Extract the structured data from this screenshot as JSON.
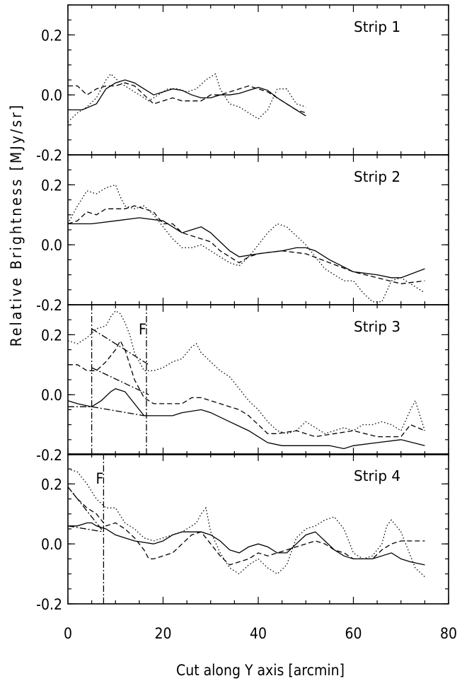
{
  "chart_data": {
    "type": "line",
    "xlabel": "Cut along Y axis [arcmin]",
    "ylabel": "Relative Brightness [MJy/sr]",
    "xlim": [
      0,
      80
    ],
    "x_ticks": [
      "0",
      "20",
      "40",
      "60",
      "80"
    ],
    "panels": [
      {
        "title": "Strip 1",
        "ylim": [
          -0.2,
          0.3
        ],
        "y_ticks": [
          "0.2",
          "0.0",
          "-0.2"
        ],
        "series": [
          {
            "style": "solid",
            "x": [
              0,
              3,
              6,
              8,
              10,
              12,
              14,
              16,
              18,
              20,
              22,
              24,
              26,
              28,
              30,
              32,
              34,
              36,
              38,
              40,
              42,
              44,
              46,
              48,
              50
            ],
            "values": [
              -0.05,
              -0.05,
              -0.03,
              0.02,
              0.04,
              0.05,
              0.04,
              0.02,
              0.0,
              0.01,
              0.02,
              0.015,
              0.0,
              -0.01,
              -0.01,
              0.0,
              0.0,
              0.005,
              0.015,
              0.025,
              0.015,
              -0.01,
              -0.03,
              -0.05,
              -0.07
            ]
          },
          {
            "style": "dashed",
            "x": [
              0,
              2,
              4,
              6,
              8,
              10,
              12,
              14,
              16,
              18,
              20,
              22,
              24,
              26,
              28,
              30,
              32,
              34,
              36,
              38,
              40,
              42,
              44,
              46,
              48,
              50
            ],
            "values": [
              0.03,
              0.03,
              0.0,
              0.02,
              0.03,
              0.03,
              0.04,
              0.03,
              0.0,
              -0.03,
              -0.02,
              -0.01,
              -0.02,
              -0.02,
              -0.02,
              0.0,
              0.0,
              0.01,
              0.02,
              0.03,
              0.02,
              0.01,
              -0.01,
              -0.03,
              -0.05,
              -0.06
            ]
          },
          {
            "style": "dotted",
            "x": [
              0,
              2,
              4,
              6,
              8,
              9,
              11,
              13,
              15,
              17,
              19,
              21,
              23,
              25,
              27,
              29,
              31,
              32,
              34,
              36,
              38,
              40,
              42,
              44,
              46,
              48,
              50
            ],
            "values": [
              -0.09,
              -0.06,
              -0.04,
              -0.01,
              0.05,
              0.07,
              0.04,
              0.02,
              0.0,
              -0.02,
              0.0,
              0.02,
              0.02,
              0.01,
              0.02,
              0.05,
              0.07,
              0.02,
              -0.03,
              -0.04,
              -0.06,
              -0.08,
              -0.05,
              0.02,
              0.02,
              -0.03,
              -0.04
            ]
          }
        ]
      },
      {
        "title": "Strip 2",
        "ylim": [
          -0.2,
          0.3
        ],
        "y_ticks": [
          "0.2",
          "0.0",
          "-0.2"
        ],
        "series": [
          {
            "style": "solid",
            "x": [
              0,
              5,
              10,
              15,
              20,
              22,
              24,
              26,
              28,
              30,
              32,
              34,
              36,
              40,
              45,
              48,
              50,
              52,
              55,
              60,
              65,
              68,
              70,
              75
            ],
            "values": [
              0.07,
              0.07,
              0.08,
              0.09,
              0.08,
              0.06,
              0.04,
              0.05,
              0.06,
              0.04,
              0.01,
              -0.02,
              -0.04,
              -0.03,
              -0.02,
              -0.01,
              -0.01,
              -0.02,
              -0.05,
              -0.09,
              -0.1,
              -0.11,
              -0.11,
              -0.08
            ]
          },
          {
            "style": "dashed",
            "x": [
              0,
              2,
              4,
              6,
              8,
              10,
              12,
              14,
              16,
              18,
              20,
              22,
              24,
              26,
              28,
              30,
              32,
              34,
              36,
              38,
              40,
              45,
              50,
              55,
              60,
              65,
              70,
              75
            ],
            "values": [
              0.07,
              0.08,
              0.11,
              0.1,
              0.12,
              0.12,
              0.12,
              0.13,
              0.12,
              0.11,
              0.07,
              0.07,
              0.04,
              0.03,
              0.02,
              0.01,
              -0.02,
              -0.04,
              -0.06,
              -0.04,
              -0.03,
              -0.02,
              -0.03,
              -0.06,
              -0.09,
              -0.11,
              -0.13,
              -0.12
            ]
          },
          {
            "style": "dotted",
            "x": [
              0,
              2,
              4,
              6,
              8,
              10,
              11,
              12,
              14,
              16,
              18,
              20,
              22,
              24,
              26,
              28,
              30,
              32,
              34,
              36,
              38,
              40,
              42,
              44,
              46,
              48,
              50,
              52,
              54,
              56,
              58,
              60,
              62,
              64,
              66,
              68,
              70,
              72,
              75
            ],
            "values": [
              0.07,
              0.13,
              0.18,
              0.17,
              0.19,
              0.2,
              0.16,
              0.13,
              0.12,
              0.13,
              0.1,
              0.06,
              0.02,
              -0.01,
              -0.01,
              0.0,
              -0.02,
              -0.04,
              -0.06,
              -0.07,
              -0.04,
              0.0,
              0.04,
              0.07,
              0.06,
              0.03,
              0.0,
              -0.04,
              -0.08,
              -0.1,
              -0.12,
              -0.12,
              -0.16,
              -0.19,
              -0.19,
              -0.12,
              -0.11,
              -0.13,
              -0.16
            ]
          }
        ]
      },
      {
        "title": "Strip 3",
        "ylim": [
          -0.2,
          0.3
        ],
        "y_ticks": [
          "0.2",
          "0.0",
          "-0.2"
        ],
        "annotation": "F",
        "series": [
          {
            "style": "solid",
            "x": [
              0,
              2,
              5,
              7,
              9,
              10,
              12,
              14,
              16,
              18,
              20,
              22,
              24,
              28,
              30,
              34,
              38,
              42,
              45,
              50,
              55,
              58,
              60,
              65,
              70,
              75
            ],
            "values": [
              -0.02,
              -0.03,
              -0.04,
              -0.02,
              0.01,
              0.02,
              0.01,
              -0.03,
              -0.07,
              -0.07,
              -0.07,
              -0.07,
              -0.06,
              -0.05,
              -0.06,
              -0.09,
              -0.12,
              -0.16,
              -0.17,
              -0.17,
              -0.17,
              -0.18,
              -0.17,
              -0.16,
              -0.15,
              -0.17
            ]
          },
          {
            "style": "dashed",
            "x": [
              0,
              2,
              4,
              6,
              8,
              10,
              11,
              12,
              14,
              16,
              18,
              20,
              22,
              24,
              26,
              28,
              30,
              32,
              34,
              36,
              38,
              40,
              42,
              44,
              48,
              52,
              56,
              60,
              65,
              70,
              72,
              75
            ],
            "values": [
              0.1,
              0.1,
              0.08,
              0.08,
              0.11,
              0.15,
              0.18,
              0.15,
              0.05,
              -0.01,
              -0.03,
              -0.03,
              -0.03,
              -0.03,
              -0.01,
              -0.01,
              -0.02,
              -0.03,
              -0.04,
              -0.05,
              -0.07,
              -0.1,
              -0.13,
              -0.13,
              -0.12,
              -0.14,
              -0.13,
              -0.12,
              -0.14,
              -0.14,
              -0.1,
              -0.12
            ]
          },
          {
            "style": "dotted",
            "x": [
              0,
              2,
              4,
              6,
              8,
              9,
              10,
              11,
              12,
              13,
              14,
              16,
              18,
              20,
              22,
              24,
              26,
              27,
              28,
              30,
              32,
              34,
              36,
              38,
              40,
              42,
              44,
              46,
              48,
              50,
              52,
              54,
              56,
              58,
              60,
              62,
              64,
              66,
              68,
              70,
              72,
              73,
              75
            ],
            "values": [
              0.18,
              0.17,
              0.19,
              0.22,
              0.23,
              0.26,
              0.28,
              0.27,
              0.24,
              0.2,
              0.14,
              0.08,
              0.08,
              0.09,
              0.11,
              0.12,
              0.16,
              0.17,
              0.14,
              0.11,
              0.08,
              0.06,
              0.02,
              -0.02,
              -0.05,
              -0.09,
              -0.12,
              -0.13,
              -0.12,
              -0.09,
              -0.11,
              -0.13,
              -0.12,
              -0.11,
              -0.12,
              -0.1,
              -0.1,
              -0.09,
              -0.1,
              -0.12,
              -0.05,
              -0.02,
              -0.12
            ]
          },
          {
            "style": "dashdot",
            "x": [
              0,
              4,
              5,
              16,
              17
            ],
            "values": [
              -0.04,
              -0.04,
              -0.04,
              -0.07,
              -0.07
            ]
          },
          {
            "style": "dashdot",
            "x": [
              5,
              17
            ],
            "values": [
              0.09,
              0.0
            ]
          },
          {
            "style": "dashdot",
            "x": [
              5,
              17
            ],
            "values": [
              0.22,
              0.1
            ]
          },
          {
            "style": "dashdot",
            "x": [
              5,
              5
            ],
            "values": [
              -0.2,
              0.3
            ]
          },
          {
            "style": "dashdot",
            "x": [
              16.5,
              16.5
            ],
            "values": [
              -0.2,
              0.3
            ]
          }
        ]
      },
      {
        "title": "Strip 4",
        "ylim": [
          -0.2,
          0.3
        ],
        "y_ticks": [
          "0.2",
          "0.0",
          "-0.2"
        ],
        "annotation": "F",
        "series": [
          {
            "style": "solid",
            "x": [
              0,
              2,
              4,
              5,
              6,
              8,
              10,
              14,
              18,
              20,
              22,
              24,
              26,
              28,
              30,
              32,
              34,
              36,
              38,
              40,
              42,
              44,
              46,
              48,
              50,
              52,
              54,
              56,
              58,
              60,
              64,
              68,
              70,
              72,
              75
            ],
            "values": [
              0.06,
              0.06,
              0.07,
              0.07,
              0.06,
              0.05,
              0.03,
              0.01,
              0.0,
              0.01,
              0.03,
              0.04,
              0.04,
              0.04,
              0.03,
              0.01,
              -0.02,
              -0.03,
              -0.01,
              0.0,
              -0.01,
              -0.03,
              -0.03,
              0.0,
              0.03,
              0.04,
              0.01,
              -0.02,
              -0.04,
              -0.05,
              -0.05,
              -0.03,
              -0.05,
              -0.06,
              -0.07
            ]
          },
          {
            "style": "dashed",
            "x": [
              0,
              2,
              4,
              6,
              8,
              10,
              12,
              14,
              16,
              17,
              18,
              20,
              22,
              24,
              26,
              28,
              30,
              32,
              34,
              36,
              38,
              40,
              42,
              44,
              46,
              48,
              50,
              52,
              54,
              56,
              58,
              60,
              62,
              64,
              66,
              68,
              70,
              72,
              75
            ],
            "values": [
              0.19,
              0.15,
              0.12,
              0.1,
              0.06,
              0.07,
              0.05,
              0.02,
              -0.02,
              -0.05,
              -0.05,
              -0.04,
              -0.03,
              0.0,
              0.03,
              0.04,
              0.0,
              -0.04,
              -0.07,
              -0.06,
              -0.05,
              -0.03,
              -0.04,
              -0.03,
              -0.02,
              -0.01,
              0.0,
              0.01,
              0.0,
              -0.02,
              -0.03,
              -0.05,
              -0.05,
              -0.05,
              -0.02,
              0.0,
              0.01,
              0.01,
              0.01
            ]
          },
          {
            "style": "dotted",
            "x": [
              0,
              2,
              4,
              6,
              8,
              10,
              12,
              14,
              16,
              18,
              20,
              22,
              24,
              26,
              27,
              28,
              29,
              30,
              32,
              34,
              36,
              38,
              40,
              42,
              44,
              46,
              48,
              50,
              52,
              54,
              56,
              58,
              60,
              62,
              64,
              66,
              67,
              68,
              70,
              72,
              73,
              75
            ],
            "values": [
              0.25,
              0.24,
              0.2,
              0.15,
              0.12,
              0.12,
              0.07,
              0.05,
              0.02,
              0.01,
              0.02,
              0.03,
              0.04,
              0.06,
              0.07,
              0.1,
              0.12,
              0.04,
              -0.03,
              -0.08,
              -0.1,
              -0.07,
              -0.05,
              -0.08,
              -0.1,
              -0.07,
              0.02,
              0.05,
              0.06,
              0.08,
              0.09,
              0.05,
              -0.03,
              -0.05,
              -0.04,
              0.0,
              0.06,
              0.08,
              0.04,
              -0.04,
              -0.08,
              -0.11
            ]
          },
          {
            "style": "dashdot",
            "x": [
              0,
              7.5
            ],
            "values": [
              0.06,
              0.04
            ]
          },
          {
            "style": "dashdot",
            "x": [
              0,
              7.5
            ],
            "values": [
              0.19,
              0.04
            ]
          },
          {
            "style": "dashdot",
            "x": [
              7.5,
              7.5
            ],
            "values": [
              -0.2,
              0.3
            ]
          }
        ]
      }
    ]
  }
}
